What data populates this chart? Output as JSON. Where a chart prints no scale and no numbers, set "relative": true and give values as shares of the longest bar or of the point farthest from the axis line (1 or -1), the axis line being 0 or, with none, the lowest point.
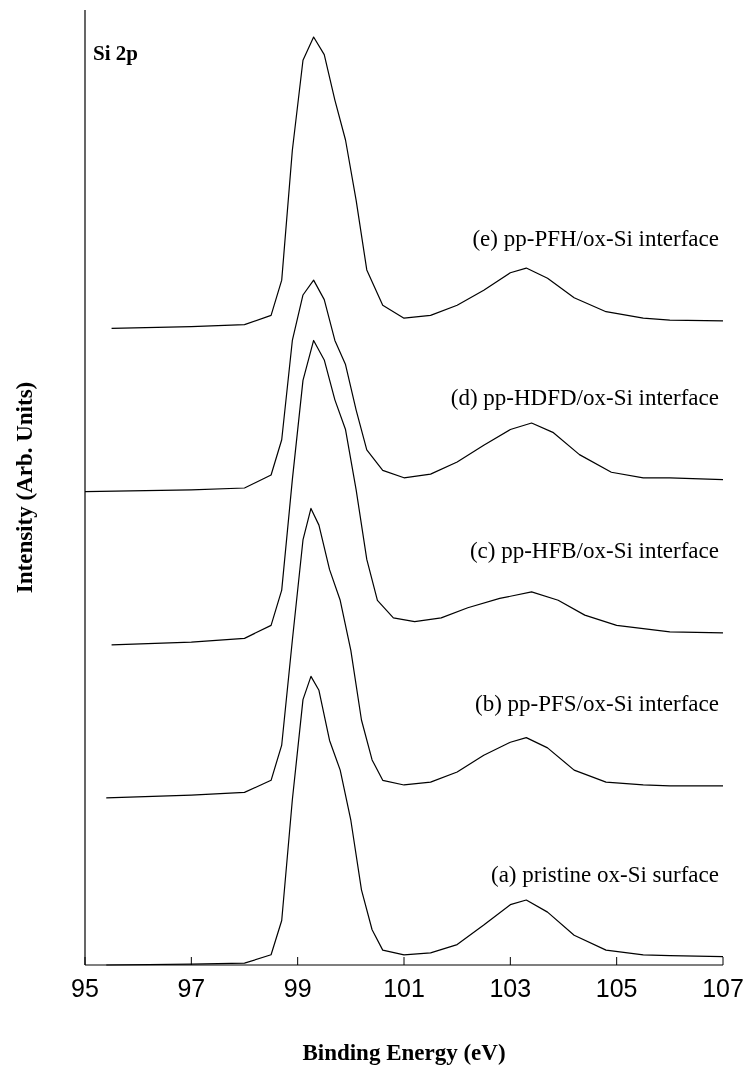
{
  "chart_data": {
    "type": "line",
    "relative": true,
    "xlabel": "Binding Energy (eV)",
    "ylabel": "Intensity (Arb. Units)",
    "annotations": [
      "Si 2p"
    ],
    "xlim": [
      95,
      107
    ],
    "xticks": [
      95,
      97,
      99,
      101,
      103,
      105,
      107
    ],
    "grid": false,
    "marker": "none",
    "line_style": "solid",
    "series": [
      {
        "name": "(a) pristine ox-Si surface",
        "color": "#000000",
        "x": [
          95.4,
          97,
          98,
          98.5,
          98.7,
          98.9,
          99.1,
          99.25,
          99.4,
          99.6,
          99.8,
          100,
          100.2,
          100.4,
          100.6,
          101,
          101.5,
          102,
          102.5,
          103,
          103.3,
          103.7,
          104.2,
          104.8,
          105.5,
          106,
          107
        ],
        "values": [
          0.0,
          0.001,
          0.002,
          0.011,
          0.048,
          0.178,
          0.286,
          0.311,
          0.296,
          0.242,
          0.21,
          0.156,
          0.081,
          0.038,
          0.016,
          0.011,
          0.013,
          0.022,
          0.043,
          0.065,
          0.07,
          0.057,
          0.032,
          0.016,
          0.011,
          0.01,
          0.009
        ]
      },
      {
        "name": "(b) pp-PFS/ox-Si interface",
        "color": "#000000",
        "x": [
          95.4,
          97,
          98,
          98.5,
          98.7,
          98.9,
          99.1,
          99.25,
          99.4,
          99.6,
          99.8,
          100,
          100.2,
          100.4,
          100.6,
          101,
          101.5,
          102,
          102.5,
          103,
          103.3,
          103.7,
          104.2,
          104.8,
          105.5,
          106,
          107
        ],
        "values": [
          0.18,
          0.183,
          0.186,
          0.199,
          0.237,
          0.35,
          0.458,
          0.492,
          0.474,
          0.426,
          0.393,
          0.339,
          0.264,
          0.221,
          0.199,
          0.194,
          0.197,
          0.208,
          0.226,
          0.24,
          0.245,
          0.234,
          0.21,
          0.197,
          0.194,
          0.193,
          0.193
        ]
      },
      {
        "name": "(c) pp-HFB/ox-Si interface",
        "color": "#000000",
        "x": [
          95.5,
          97,
          98,
          98.5,
          98.7,
          98.9,
          99.1,
          99.3,
          99.5,
          99.7,
          99.9,
          100.1,
          100.3,
          100.5,
          100.8,
          101.2,
          101.7,
          102.2,
          102.8,
          103.4,
          103.9,
          104.4,
          105,
          106,
          107
        ],
        "values": [
          0.345,
          0.348,
          0.352,
          0.366,
          0.404,
          0.523,
          0.63,
          0.673,
          0.652,
          0.609,
          0.577,
          0.512,
          0.437,
          0.393,
          0.374,
          0.37,
          0.374,
          0.385,
          0.395,
          0.402,
          0.393,
          0.377,
          0.366,
          0.359,
          0.358
        ]
      },
      {
        "name": "(d) pp-HDFD/ox-Si interface",
        "color": "#000000",
        "x": [
          95,
          97,
          98,
          98.5,
          98.7,
          98.9,
          99.1,
          99.3,
          99.5,
          99.7,
          99.9,
          100.1,
          100.3,
          100.6,
          101,
          101.5,
          102,
          102.5,
          103,
          103.4,
          103.8,
          104.3,
          104.9,
          105.5,
          106,
          107
        ],
        "values": [
          0.51,
          0.512,
          0.514,
          0.528,
          0.566,
          0.673,
          0.722,
          0.738,
          0.717,
          0.673,
          0.647,
          0.598,
          0.555,
          0.533,
          0.525,
          0.529,
          0.542,
          0.56,
          0.577,
          0.584,
          0.574,
          0.55,
          0.531,
          0.525,
          0.525,
          0.523
        ]
      },
      {
        "name": "(e) pp-PFH/ox-Si interface",
        "color": "#000000",
        "x": [
          95.5,
          97,
          98,
          98.5,
          98.7,
          98.9,
          99.1,
          99.3,
          99.5,
          99.7,
          99.9,
          100.1,
          100.3,
          100.6,
          101,
          101.5,
          102,
          102.5,
          103,
          103.3,
          103.7,
          104.2,
          104.8,
          105.5,
          106,
          107
        ],
        "values": [
          0.686,
          0.688,
          0.69,
          0.7,
          0.738,
          0.878,
          0.975,
          1.0,
          0.981,
          0.932,
          0.889,
          0.824,
          0.749,
          0.711,
          0.697,
          0.7,
          0.711,
          0.727,
          0.746,
          0.751,
          0.74,
          0.719,
          0.704,
          0.697,
          0.695,
          0.694
        ]
      }
    ]
  }
}
